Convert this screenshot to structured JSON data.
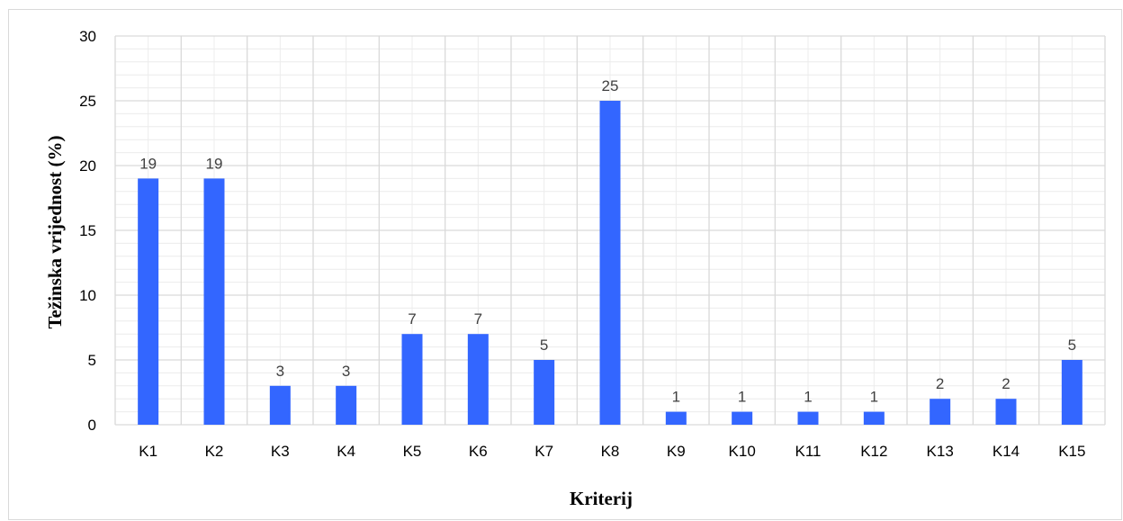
{
  "chart_data": {
    "type": "bar",
    "title": "",
    "xlabel": "Kriterij",
    "ylabel": "Težinska vrijednost (%)",
    "categories": [
      "K1",
      "K2",
      "K3",
      "K4",
      "K5",
      "K6",
      "K7",
      "K8",
      "K9",
      "K10",
      "K11",
      "K12",
      "K13",
      "K14",
      "K15"
    ],
    "values": [
      19,
      19,
      3,
      3,
      7,
      7,
      5,
      25,
      1,
      1,
      1,
      1,
      2,
      2,
      5
    ],
    "ylim": [
      0,
      30
    ],
    "yticks": [
      "0",
      "5",
      "10",
      "15",
      "20",
      "25",
      "30"
    ],
    "data_labels": [
      "19",
      "19",
      "3",
      "3",
      "7",
      "7",
      "5",
      "25",
      "1",
      "1",
      "1",
      "1",
      "2",
      "2",
      "5"
    ],
    "grid": true,
    "minor_grid": true,
    "legend": "none",
    "bar_color": "#3366ff",
    "gridline_color": "#d9d9d9",
    "minor_gridline_color": "#ececec"
  }
}
